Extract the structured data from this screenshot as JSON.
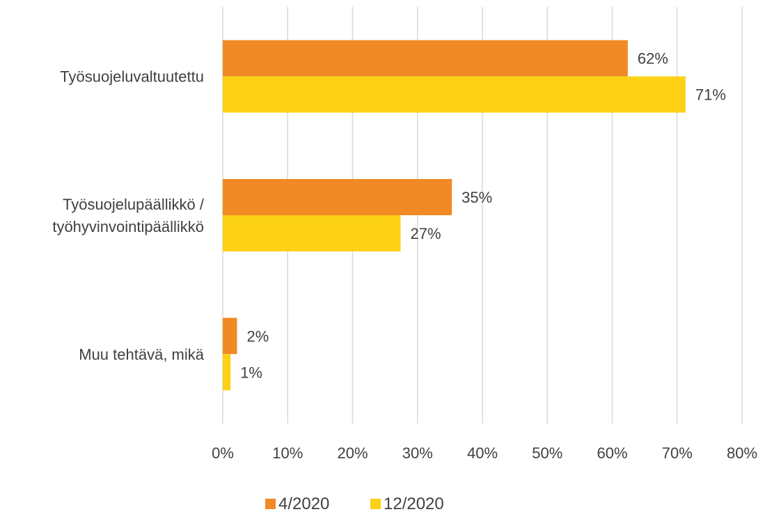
{
  "chart_data": {
    "type": "bar",
    "orientation": "horizontal",
    "categories": [
      [
        "Työsuojeluvaltuutettu"
      ],
      [
        "Työsuojelupäällikkö /",
        "työhyvinvointipäällikkö"
      ],
      [
        "Muu tehtävä, mikä"
      ]
    ],
    "series": [
      {
        "name": "4/2020",
        "color": "#f08a24",
        "values": [
          62.4,
          35.3,
          2.2
        ],
        "labels": [
          "62%",
          "35%",
          "2%"
        ]
      },
      {
        "name": "12/2020",
        "color": "#fcd116",
        "values": [
          71.3,
          27.4,
          1.2
        ],
        "labels": [
          "71%",
          "27%",
          "1%"
        ]
      }
    ],
    "xlim": [
      0,
      80
    ],
    "xticks": [
      0,
      10,
      20,
      30,
      40,
      50,
      60,
      70,
      80
    ],
    "xtick_labels": [
      "0%",
      "10%",
      "20%",
      "30%",
      "40%",
      "50%",
      "60%",
      "70%",
      "80%"
    ],
    "grid": true,
    "legend": "bottom"
  }
}
